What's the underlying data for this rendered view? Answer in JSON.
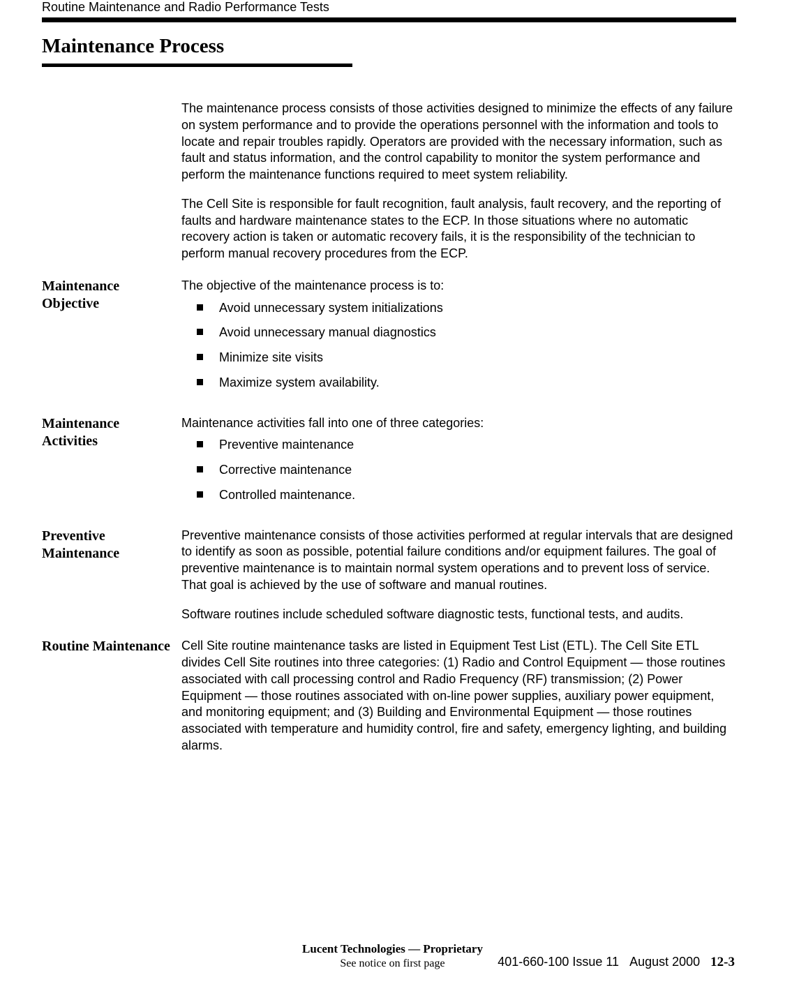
{
  "running_head": "Routine Maintenance and Radio Performance Tests",
  "section_title": "Maintenance Process",
  "intro_p1": "The maintenance process consists of those activities designed to minimize the effects of any failure on system performance and to provide the operations personnel with the information and tools to locate and repair troubles rapidly. Operators are provided with the necessary information, such as fault and status information, and the control capability to monitor the system performance and perform the maintenance functions required to meet system reliability.",
  "intro_p2": "The Cell Site is responsible for fault recognition, fault analysis, fault recovery, and the reporting of faults and hardware maintenance states to the ECP. In those situations where no automatic recovery action is taken or automatic recovery fails, it is the responsibility of the technician to perform manual recovery procedures from the ECP.",
  "sections": {
    "objective": {
      "label": "Maintenance Objective",
      "lead": "The objective of the maintenance process is to:",
      "items": [
        "Avoid unnecessary system initializations",
        "Avoid unnecessary manual diagnostics",
        "Minimize site visits",
        "Maximize system availability."
      ]
    },
    "activities": {
      "label": "Maintenance Activities",
      "lead": "Maintenance activities fall into one of three categories:",
      "items": [
        "Preventive maintenance",
        "Corrective maintenance",
        "Controlled maintenance."
      ]
    },
    "preventive": {
      "label": "Preventive Maintenance",
      "p1": "Preventive maintenance consists of those activities performed at regular intervals that are designed to identify as soon as possible, potential failure conditions and/or equipment failures. The goal of preventive maintenance is to maintain normal system operations and to prevent loss of service. That goal is achieved by the use of software and manual routines.",
      "p2": "Software routines include scheduled software diagnostic tests, functional tests, and audits."
    },
    "routine": {
      "label": "Routine Maintenance",
      "p1": "Cell Site routine maintenance tasks are listed in Equipment Test List (ETL). The Cell Site ETL divides Cell Site routines into three categories: (1) Radio and Control Equipment — those routines associated with call processing control and Radio Frequency (RF) transmission; (2) Power Equipment — those routines associated with on-line power supplies, auxiliary power equipment, and monitoring equipment; and (3) Building and Environmental Equipment — those routines associated with temperature and humidity control, fire and safety, emergency lighting, and building alarms."
    }
  },
  "footer": {
    "line1": "Lucent Technologies — Proprietary",
    "line2": "See notice on first page",
    "docnum": "401-660-100 Issue 11",
    "date": "August 2000",
    "page": "12-3"
  }
}
